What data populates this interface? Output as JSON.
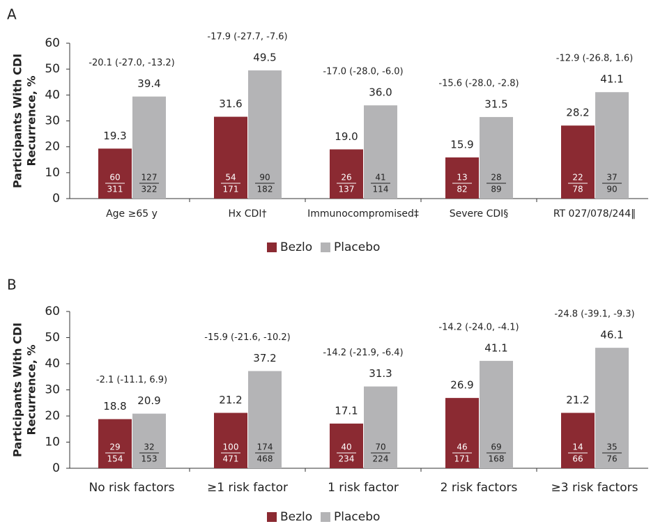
{
  "chart_data": [
    {
      "type": "bar",
      "panel": "A",
      "ylabel": [
        "Participants With CDI",
        "Recurrence, %"
      ],
      "categories": [
        "Age ≥65 y",
        "Hx CDI†",
        "Immunocompromised‡",
        "Severe CDI§",
        "RT 027/078/244‖"
      ],
      "series": [
        {
          "name": "Bezlo",
          "color": "#8b2a32",
          "values": [
            19.3,
            31.6,
            19.0,
            15.9,
            28.2
          ],
          "value_labels": [
            "19.3",
            "31.6",
            "19.0",
            "15.9",
            "28.2"
          ],
          "n": [
            60,
            54,
            26,
            13,
            22
          ],
          "N": [
            311,
            171,
            137,
            82,
            78
          ]
        },
        {
          "name": "Placebo",
          "color": "#b4b4b6",
          "values": [
            39.4,
            49.5,
            36.0,
            31.5,
            41.1
          ],
          "value_labels": [
            "39.4",
            "49.5",
            "36.0",
            "31.5",
            "41.1"
          ],
          "n": [
            127,
            90,
            41,
            28,
            37
          ],
          "N": [
            322,
            182,
            114,
            89,
            90
          ]
        }
      ],
      "annotations": [
        "-20.1 (-27.0, -13.2)",
        "-17.9 (-27.7, -7.6)",
        "-17.0 (-28.0, -6.0)",
        "-15.6 (-28.0, -2.8)",
        "-12.9 (-26.8, 1.6)"
      ],
      "ylim": [
        0,
        60
      ],
      "yticks": [
        0,
        10,
        20,
        30,
        40,
        50,
        60
      ]
    },
    {
      "type": "bar",
      "panel": "B",
      "ylabel": [
        "Participants With CDI",
        "Recurrence, %"
      ],
      "categories": [
        "No risk factors",
        "≥1 risk factor",
        "1 risk factor",
        "2 risk factors",
        "≥3 risk factors"
      ],
      "series": [
        {
          "name": "Bezlo",
          "color": "#8b2a32",
          "values": [
            18.8,
            21.2,
            17.1,
            26.9,
            21.2
          ],
          "value_labels": [
            "18.8",
            "21.2",
            "17.1",
            "26.9",
            "21.2"
          ],
          "n": [
            29,
            100,
            40,
            46,
            14
          ],
          "N": [
            154,
            471,
            234,
            171,
            66
          ]
        },
        {
          "name": "Placebo",
          "color": "#b4b4b6",
          "values": [
            20.9,
            37.2,
            31.3,
            41.1,
            46.1
          ],
          "value_labels": [
            "20.9",
            "37.2",
            "31.3",
            "41.1",
            "46.1"
          ],
          "n": [
            32,
            174,
            70,
            69,
            35
          ],
          "N": [
            153,
            468,
            224,
            168,
            76
          ]
        }
      ],
      "annotations": [
        "-2.1 (-11.1, 6.9)",
        "-15.9 (-21.6, -10.2)",
        "-14.2 (-21.9, -6.4)",
        "-14.2 (-24.0, -4.1)",
        "-24.8 (-39.1, -9.3)"
      ],
      "ylim": [
        0,
        60
      ],
      "yticks": [
        0,
        10,
        20,
        30,
        40,
        50,
        60
      ]
    }
  ]
}
